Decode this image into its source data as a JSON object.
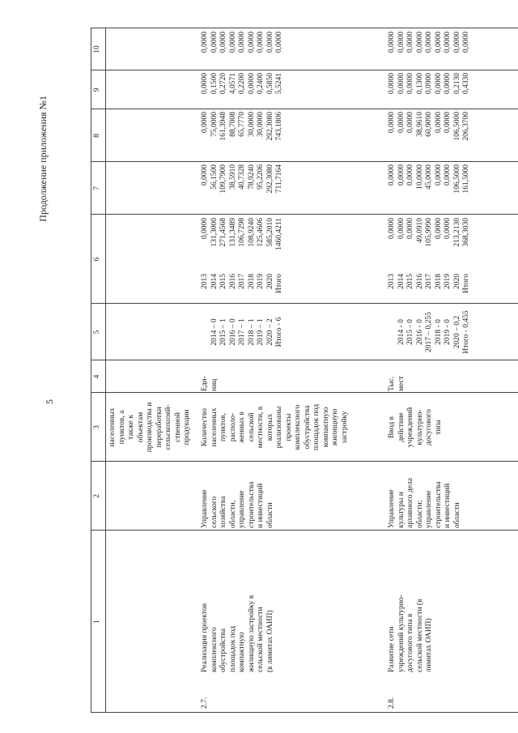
{
  "header": {
    "title": "Продолжение приложения №1",
    "page_number": "5"
  },
  "table": {
    "columns": [
      "1",
      "2",
      "3",
      "4",
      "5",
      "6",
      "7",
      "8",
      "9",
      "10"
    ],
    "rows": [
      {
        "indicator": [
          "населенных",
          "пунктов, а",
          "также к",
          "объектам",
          "производства и",
          "переработки",
          "сельскохозяй-",
          "ственной",
          "продукции"
        ]
      },
      {
        "number": "2.7.",
        "name": [
          "Реализация проектов",
          "комплексного",
          "обустройства",
          "площадок под",
          "компактную",
          "жилищную застройку в",
          "сельской местности",
          "(в лимитах ОАИП)"
        ],
        "responsible": [
          "Управление",
          "сельского",
          "хозяйства",
          "области,",
          "управление",
          "строительства",
          "и инвестиций",
          "области"
        ],
        "indicator": [
          "Количество",
          "населенных",
          "пунктов,",
          "располо-",
          "женных в",
          "сельской",
          "местности, в",
          "которых",
          "реализованы",
          "проекты",
          "комплексного",
          "обустройства",
          "площадок под",
          "компактную",
          "жилищную",
          "застройку"
        ],
        "unit": [
          "Еди-",
          "ниц"
        ],
        "targets": [
          "2014 – 0",
          "2015 – 1",
          "2016 – 0",
          "2017 – 1",
          "2018 – 1",
          "2019 – 1",
          "2020 – 2",
          "Итого - 6"
        ],
        "years": [
          "2013",
          "2014",
          "2015",
          "2016",
          "2017",
          "2018",
          "2019",
          "2020",
          "Итого"
        ],
        "col6": [
          "0,0000",
          "131,3000",
          "271,4568",
          "131,3489",
          "106,7298",
          "108,9240",
          "125,4606",
          "585,2010",
          "1460,4211"
        ],
        "col7": [
          "0,0000",
          "56,1500",
          "109,7900",
          "38,5910",
          "40,7328",
          "78,9240",
          "95,2206",
          "292,3080",
          "711,7164"
        ],
        "col8": [
          "0,0000",
          "75,0000",
          "161,3948",
          "88,7008",
          "65,7770",
          "30,0000",
          "30,0000",
          "292,3080",
          "743,1806"
        ],
        "col9": [
          "0,0000",
          "0,1500",
          "0,2720",
          "4,0571",
          "0,2200",
          "0,0000",
          "0,2400",
          "0,5850",
          "5,5241"
        ],
        "col10": [
          "0,0000",
          "0,0000",
          "0,0000",
          "0,0000",
          "0,0000",
          "0,0000",
          "0,0000",
          "0,0000",
          "0,0000"
        ]
      },
      {
        "number": "2.8.",
        "name": [
          "Развитие сети",
          "учреждений культурно-",
          "досугового типа в",
          "сельской местности (в",
          "лимитах ОАИП)"
        ],
        "responsible": [
          "Управление",
          "культуры и",
          "архивного дела",
          "области;",
          "управление",
          "строительства",
          "и инвестиций",
          "области"
        ],
        "indicator": [
          "Ввод в",
          "действие",
          "учреждений",
          "культурно-",
          "досугового",
          "типа"
        ],
        "unit": [
          "Тыс.",
          "мест"
        ],
        "targets": [
          "2014 - 0",
          "2015 - 0",
          "2016 - 0",
          "2017 – 0,255",
          "2018 - 0",
          "2019 - 0",
          "2020 – 0,2",
          "Итого - 0,455"
        ],
        "years": [
          "2013",
          "2014",
          "2015",
          "2016",
          "2017",
          "2018",
          "2019",
          "2020",
          "Итого"
        ],
        "col6": [
          "0,0000",
          "0,0000",
          "0,0000",
          "49,0910",
          "105,9990",
          "0,0000",
          "0,0000",
          "213,2130",
          "368,3030"
        ],
        "col7": [
          "0,0000",
          "0,0000",
          "0,0000",
          "10,0000",
          "45,0000",
          "0,0000",
          "0,0000",
          "106,5000",
          "161,5000"
        ],
        "col8": [
          "0,0000",
          "0,0000",
          "0,0000",
          "38,9610",
          "60,9090",
          "0,0000",
          "0,0000",
          "106,5000",
          "206,3700"
        ],
        "col9": [
          "0,0000",
          "0,0000",
          "0,0000",
          "0,1300",
          "0,0900",
          "0,0000",
          "0,0000",
          "0,2130",
          "0,4330"
        ],
        "col10": [
          "0,0000",
          "0,0000",
          "0,0000",
          "0,0000",
          "0,0000",
          "0,0000",
          "0,0000",
          "0,0000",
          "0,0000"
        ]
      }
    ]
  }
}
